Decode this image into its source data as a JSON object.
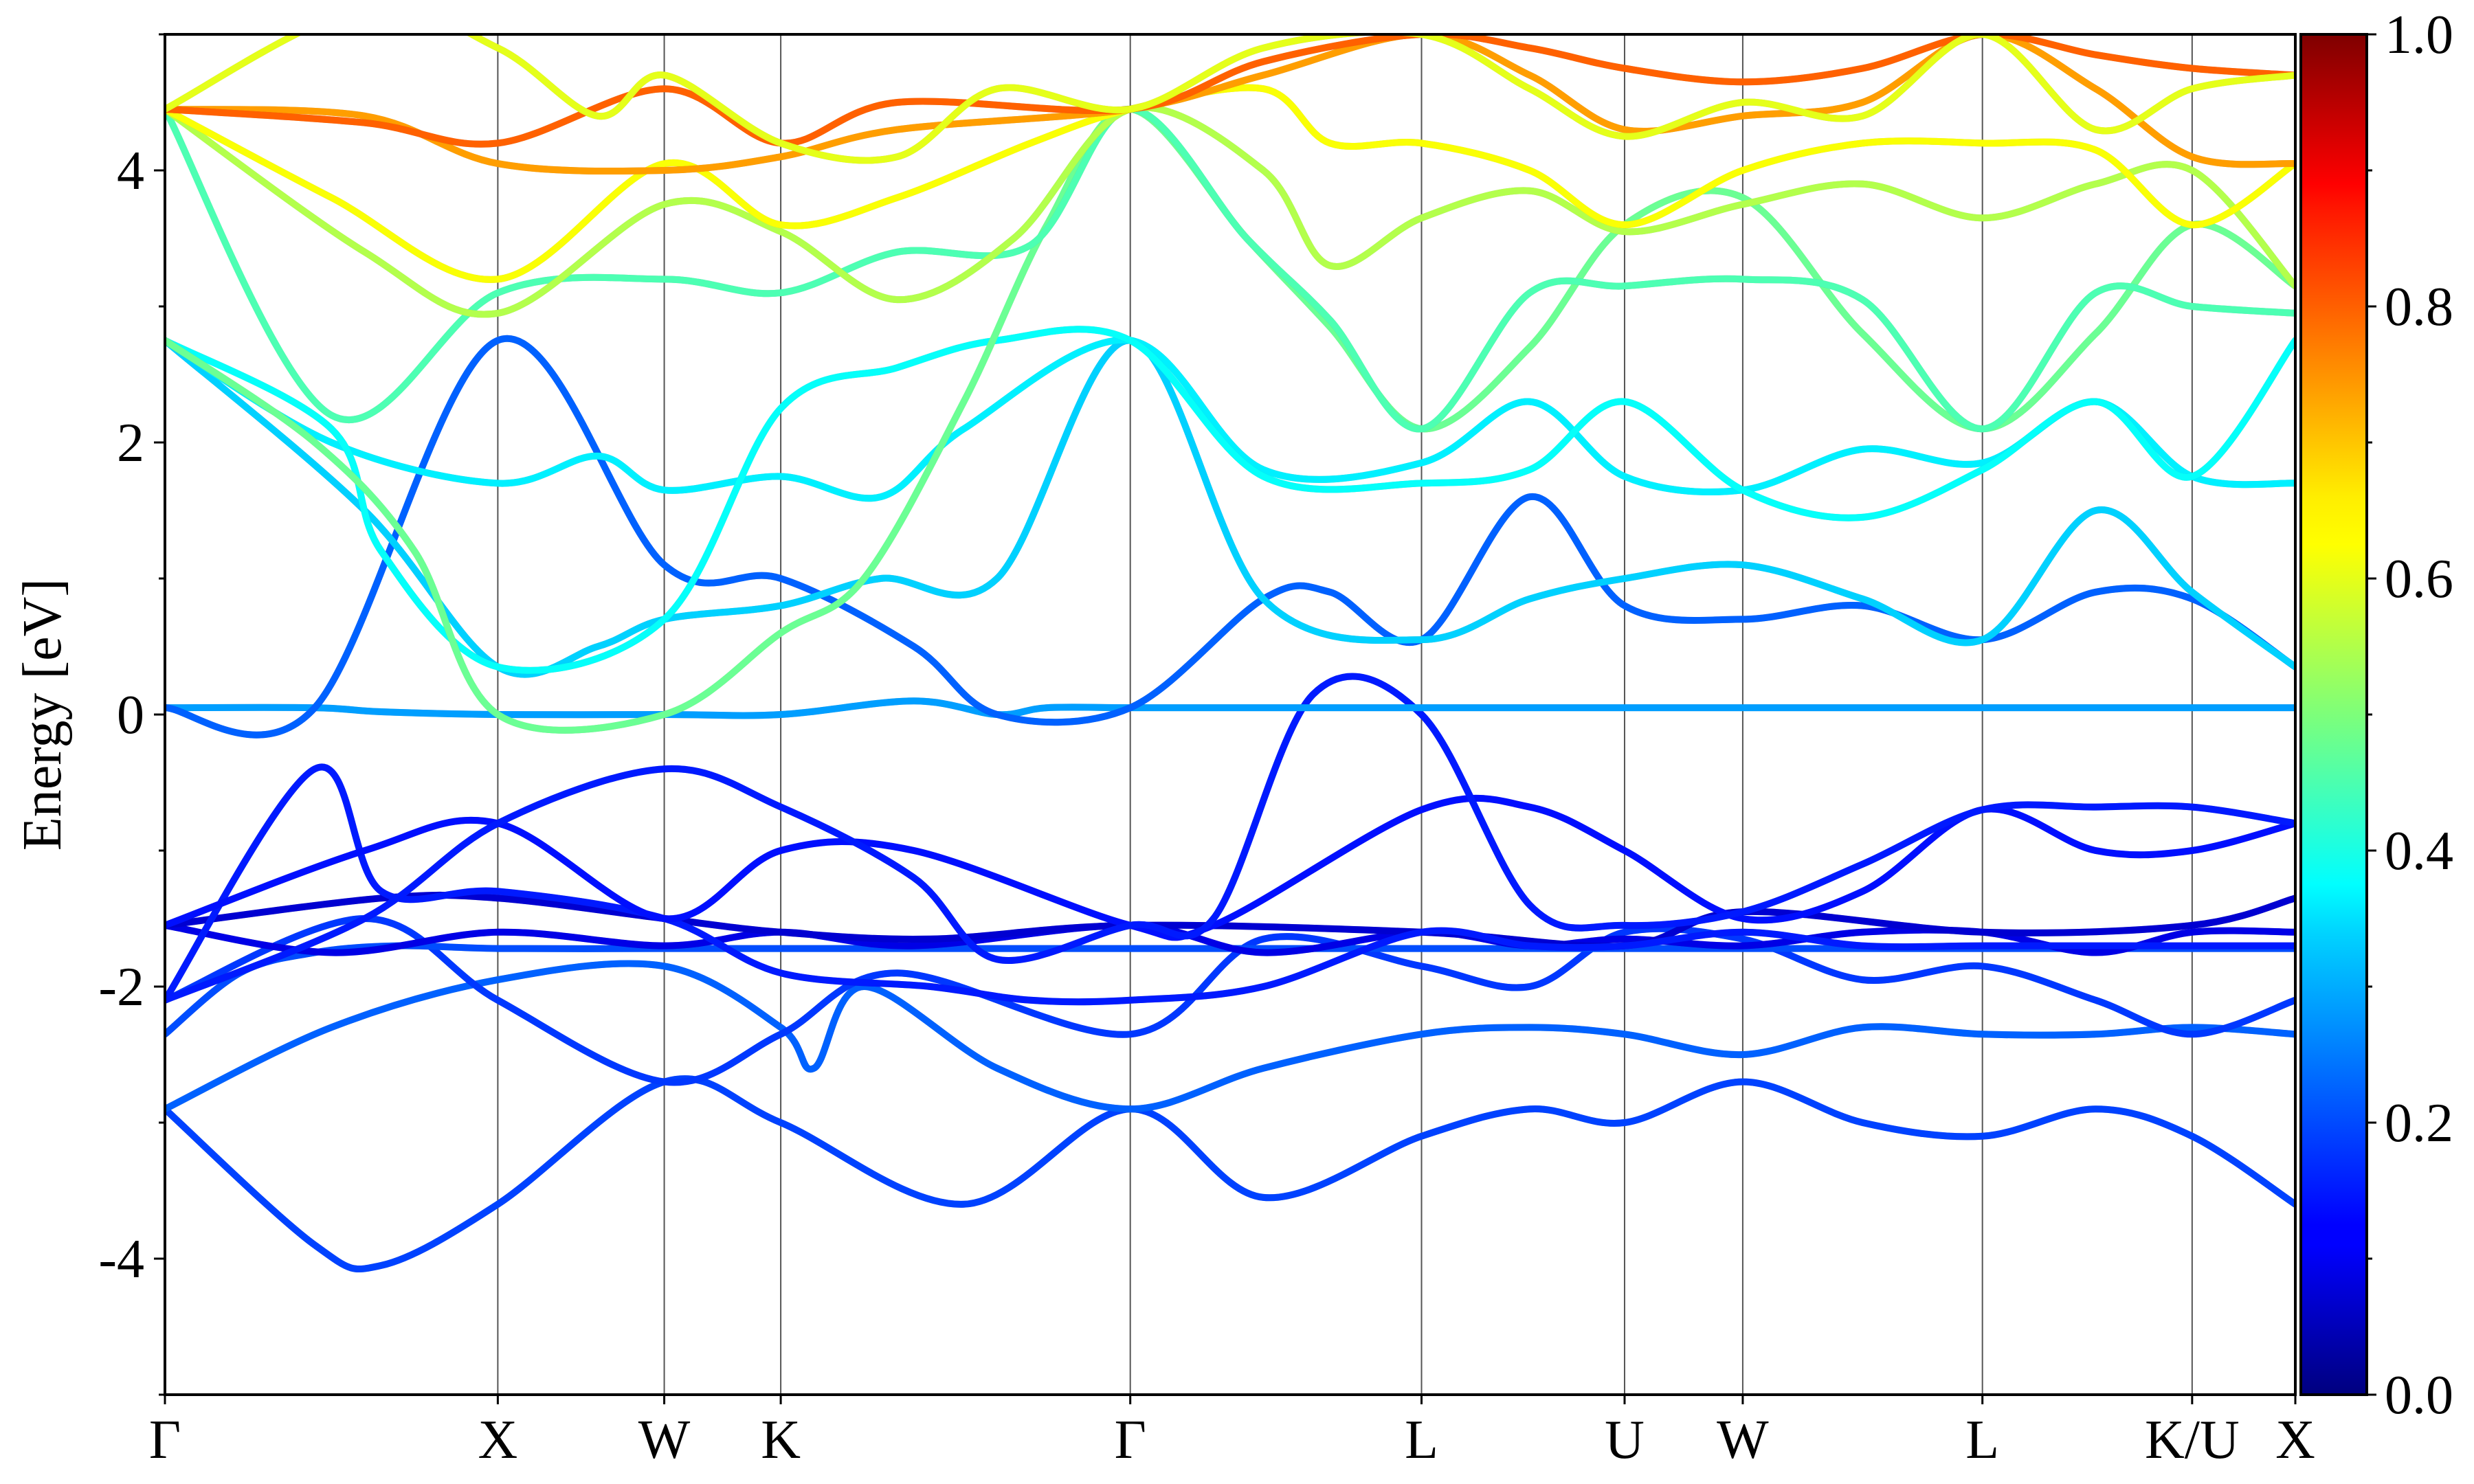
{
  "chart_data": {
    "type": "line",
    "title": "",
    "xlabel": "",
    "ylabel": "Energy [eV]",
    "ylim": [
      -5,
      5
    ],
    "yticks": [
      4,
      2,
      0,
      -2,
      -4
    ],
    "ytick_labels": [
      "4",
      "2",
      "0",
      "-2",
      "-4"
    ],
    "xlim": [
      0,
      12.8
    ],
    "kpoints": [
      {
        "label": "Γ",
        "x": 0
      },
      {
        "label": "X",
        "x": 2.0
      },
      {
        "label": "W",
        "x": 3.0
      },
      {
        "label": "K",
        "x": 3.7
      },
      {
        "label": "Γ",
        "x": 5.8
      },
      {
        "label": "L",
        "x": 7.55
      },
      {
        "label": "U",
        "x": 8.77
      },
      {
        "label": "W",
        "x": 9.48
      },
      {
        "label": "L",
        "x": 10.92
      },
      {
        "label": "K/U",
        "x": 12.18
      },
      {
        "label": "X",
        "x": 12.8
      }
    ],
    "colorbar": {
      "colormap": "jet",
      "range": [
        0.0,
        1.0
      ],
      "ticks": [
        1.0,
        0.8,
        0.6,
        0.4,
        0.2,
        0.0
      ],
      "tick_labels": [
        "1.0",
        "0.8",
        "0.6",
        "0.4",
        "0.2",
        "0.0"
      ]
    },
    "grid": "vertical lines at high-symmetry points",
    "series": [
      {
        "weight": 0.19,
        "x": [
          0,
          0.9,
          1.3,
          2.0,
          3.0,
          3.7,
          4.8,
          5.8,
          6.6,
          7.55,
          8.2,
          8.77,
          9.48,
          10.2,
          10.92,
          11.6,
          12.18,
          12.8
        ],
        "y": [
          -2.9,
          -3.9,
          -4.05,
          -3.6,
          -2.7,
          -3.0,
          -3.6,
          -2.9,
          -3.55,
          -3.1,
          -2.9,
          -3.0,
          -2.7,
          -3.0,
          -3.1,
          -2.9,
          -3.1,
          -3.6
        ]
      },
      {
        "weight": 0.22,
        "x": [
          0,
          1.0,
          2.0,
          3.0,
          3.7,
          3.9,
          4.2,
          5.0,
          5.8,
          6.6,
          7.55,
          8.2,
          8.77,
          9.48,
          10.2,
          10.92,
          11.6,
          12.18,
          12.8
        ],
        "y": [
          -2.9,
          -2.3,
          -1.95,
          -1.85,
          -2.3,
          -2.6,
          -2.0,
          -2.6,
          -2.9,
          -2.6,
          -2.35,
          -2.3,
          -2.35,
          -2.5,
          -2.3,
          -2.35,
          -2.35,
          -2.3,
          -2.35
        ]
      },
      {
        "weight": 0.18,
        "x": [
          0,
          1.2,
          2.0,
          3.0,
          3.7,
          4.4,
          5.8,
          6.6,
          7.55,
          8.2,
          8.77,
          9.48,
          10.2,
          10.92,
          11.6,
          12.18,
          12.8
        ],
        "y": [
          -2.1,
          -1.5,
          -2.1,
          -2.7,
          -2.35,
          -1.9,
          -2.35,
          -1.65,
          -1.85,
          -2.0,
          -1.6,
          -1.65,
          -1.95,
          -1.85,
          -2.1,
          -2.35,
          -2.1
        ]
      },
      {
        "weight": 0.2,
        "x": [
          0,
          0.45,
          0.9,
          1.4,
          2.0,
          3.0,
          3.7,
          5.8,
          6.6,
          7.55,
          8.2,
          8.77,
          9.48,
          10.92,
          12.8
        ],
        "y": [
          -2.35,
          -1.9,
          -1.75,
          -1.7,
          -1.72,
          -1.72,
          -1.72,
          -1.72,
          -1.72,
          -1.72,
          -1.72,
          -1.72,
          -1.72,
          -1.72,
          -1.72
        ]
      },
      {
        "weight": 0.1,
        "x": [
          0,
          1.0,
          2.0,
          3.0,
          3.7,
          4.5,
          5.8,
          6.6,
          7.55,
          8.2,
          8.77,
          9.48,
          10.2,
          10.92,
          11.6,
          12.18,
          12.8
        ],
        "y": [
          -1.55,
          -1.75,
          -1.6,
          -1.7,
          -1.6,
          -1.7,
          -1.55,
          -1.75,
          -1.6,
          -1.7,
          -1.65,
          -1.7,
          -1.6,
          -1.6,
          -1.75,
          -1.6,
          -1.6
        ]
      },
      {
        "weight": 0.08,
        "x": [
          0,
          1.3,
          2.0,
          3.0,
          3.7,
          4.6,
          5.8,
          7.55,
          8.77,
          9.48,
          10.92,
          12.18,
          12.8
        ],
        "y": [
          -1.55,
          -1.35,
          -1.35,
          -1.5,
          -1.6,
          -1.65,
          -1.55,
          -1.6,
          -1.7,
          -1.45,
          -1.6,
          -1.55,
          -1.35
        ]
      },
      {
        "weight": 0.15,
        "x": [
          0,
          0.9,
          1.3,
          2.0,
          3.0,
          3.7,
          4.6,
          5.2,
          5.8,
          6.6,
          7.55,
          8.2,
          8.77,
          9.48,
          10.2,
          10.92,
          11.6,
          12.18,
          12.8
        ],
        "y": [
          -2.1,
          -0.4,
          -1.3,
          -1.3,
          -1.5,
          -1.9,
          -2.0,
          -2.1,
          -2.1,
          -2.0,
          -1.6,
          -1.7,
          -1.7,
          -1.6,
          -1.7,
          -1.7,
          -1.7,
          -1.7,
          -1.7
        ]
      },
      {
        "weight": 0.14,
        "x": [
          0,
          1.2,
          2.0,
          3.0,
          3.7,
          4.5,
          5.8,
          6.3,
          7.55,
          8.2,
          8.77,
          9.48,
          10.2,
          10.92,
          11.6,
          12.18,
          12.8
        ],
        "y": [
          -1.55,
          -1.0,
          -0.8,
          -1.5,
          -1.0,
          -1.0,
          -1.55,
          -1.55,
          -0.7,
          -0.68,
          -1.0,
          -1.5,
          -1.3,
          -0.7,
          -1.0,
          -1.0,
          -0.8
        ]
      },
      {
        "weight": 0.15,
        "x": [
          0,
          1.2,
          2.0,
          3.0,
          3.7,
          4.5,
          5.0,
          5.8,
          6.3,
          6.9,
          7.55,
          8.2,
          8.77,
          9.48,
          10.2,
          10.92,
          11.6,
          12.18,
          12.8
        ],
        "y": [
          -2.1,
          -1.5,
          -0.8,
          -0.4,
          -0.68,
          -1.2,
          -1.8,
          -1.55,
          -1.5,
          0.15,
          0.0,
          -1.4,
          -1.55,
          -1.45,
          -1.1,
          -0.7,
          -0.68,
          -0.68,
          -0.8
        ]
      },
      {
        "weight": 0.28,
        "x": [
          0,
          0.9,
          1.3,
          2.0,
          3.0,
          3.7,
          4.5,
          5.0,
          5.3,
          5.8,
          6.6,
          7.55,
          8.77,
          9.48,
          10.2,
          10.92,
          11.6,
          12.18,
          12.8
        ],
        "y": [
          0.05,
          0.05,
          0.02,
          0.0,
          0.0,
          0.0,
          0.1,
          0.0,
          0.05,
          0.05,
          0.05,
          0.05,
          0.05,
          0.05,
          0.05,
          0.05,
          0.05,
          0.05,
          0.05
        ]
      },
      {
        "weight": 0.22,
        "x": [
          0,
          0.9,
          2.0,
          3.0,
          3.7,
          4.5,
          5.0,
          5.8,
          6.6,
          7.0,
          7.55,
          8.2,
          8.77,
          9.48,
          10.2,
          10.92,
          11.6,
          12.18,
          12.8
        ],
        "y": [
          0.05,
          0.05,
          2.75,
          1.1,
          1.0,
          0.5,
          0.0,
          0.05,
          0.85,
          0.9,
          0.55,
          1.6,
          0.8,
          0.7,
          0.8,
          0.55,
          0.9,
          0.85,
          0.35
        ]
      },
      {
        "weight": 0.33,
        "x": [
          0,
          1.2,
          2.0,
          2.6,
          3.0,
          3.7,
          4.3,
          5.0,
          5.8,
          6.6,
          7.55,
          8.2,
          8.77,
          9.48,
          10.2,
          10.92,
          11.6,
          12.18,
          12.8
        ],
        "y": [
          2.75,
          1.5,
          0.35,
          0.5,
          0.7,
          0.8,
          1.0,
          1.0,
          2.75,
          0.85,
          0.55,
          0.85,
          1.0,
          1.1,
          0.85,
          0.55,
          1.5,
          0.9,
          0.35
        ]
      },
      {
        "weight": 0.36,
        "x": [
          0,
          1.0,
          2.0,
          2.6,
          3.0,
          3.7,
          4.3,
          4.8,
          5.8,
          6.6,
          7.55,
          8.2,
          8.77,
          9.48,
          10.2,
          10.92,
          11.6,
          12.18,
          12.8
        ],
        "y": [
          2.75,
          2.0,
          1.7,
          1.9,
          1.65,
          1.75,
          1.6,
          2.1,
          2.75,
          1.8,
          1.85,
          2.3,
          1.75,
          1.65,
          1.95,
          1.85,
          2.3,
          1.75,
          1.7
        ]
      },
      {
        "weight": 0.38,
        "x": [
          0,
          1.0,
          1.3,
          2.0,
          3.0,
          3.7,
          4.4,
          5.0,
          5.8,
          6.6,
          7.55,
          8.2,
          8.77,
          9.48,
          10.2,
          10.92,
          11.6,
          12.18,
          12.8
        ],
        "y": [
          2.75,
          2.1,
          1.2,
          0.35,
          0.7,
          2.25,
          2.55,
          2.75,
          2.75,
          1.75,
          1.7,
          1.8,
          2.3,
          1.65,
          1.45,
          1.8,
          2.3,
          1.75,
          2.75
        ]
      },
      {
        "weight": 0.48,
        "x": [
          0,
          0.9,
          1.5,
          2.0,
          3.0,
          3.7,
          4.2,
          4.8,
          5.3,
          5.8,
          6.5,
          7.0,
          7.55,
          8.2,
          8.77,
          9.48,
          10.2,
          10.92,
          11.6,
          12.18,
          12.8
        ],
        "y": [
          2.75,
          2.0,
          1.2,
          0.0,
          0.0,
          0.6,
          1.0,
          2.3,
          3.6,
          4.45,
          3.5,
          2.85,
          2.1,
          2.7,
          3.6,
          3.8,
          2.8,
          2.1,
          2.8,
          3.6,
          3.15
        ]
      },
      {
        "weight": 0.45,
        "x": [
          0,
          1.0,
          2.0,
          3.0,
          3.7,
          4.4,
          5.2,
          5.8,
          6.5,
          7.0,
          7.55,
          8.2,
          8.77,
          9.48,
          10.2,
          10.92,
          11.6,
          12.18,
          12.8
        ],
        "y": [
          4.45,
          2.2,
          3.1,
          3.2,
          3.1,
          3.4,
          3.45,
          4.45,
          3.5,
          2.9,
          2.1,
          3.1,
          3.15,
          3.2,
          3.05,
          2.1,
          3.1,
          3.0,
          2.95
        ]
      },
      {
        "weight": 0.55,
        "x": [
          0,
          1.2,
          2.0,
          3.0,
          3.7,
          4.4,
          5.1,
          5.8,
          6.6,
          7.0,
          7.55,
          8.2,
          8.77,
          9.48,
          10.2,
          10.92,
          11.6,
          12.18,
          12.8
        ],
        "y": [
          4.45,
          3.4,
          2.95,
          3.75,
          3.55,
          3.05,
          3.5,
          4.45,
          4.0,
          3.3,
          3.65,
          3.85,
          3.55,
          3.75,
          3.9,
          3.65,
          3.9,
          4.0,
          3.15
        ]
      },
      {
        "weight": 0.62,
        "x": [
          0,
          1.0,
          2.0,
          3.0,
          3.7,
          4.4,
          5.2,
          5.8,
          6.6,
          7.0,
          7.55,
          8.2,
          8.77,
          9.48,
          10.2,
          10.92,
          11.6,
          12.18,
          12.8
        ],
        "y": [
          4.45,
          3.8,
          3.2,
          4.05,
          3.6,
          3.8,
          4.2,
          4.45,
          4.6,
          4.2,
          4.2,
          4.0,
          3.6,
          4.0,
          4.2,
          4.2,
          4.15,
          3.6,
          4.05
        ]
      },
      {
        "weight": 0.72,
        "x": [
          0,
          1.2,
          2.0,
          3.0,
          3.7,
          4.4,
          5.8,
          6.6,
          7.55,
          8.2,
          8.77,
          9.48,
          10.2,
          10.92,
          11.6,
          12.18,
          12.8
        ],
        "y": [
          4.45,
          4.4,
          4.05,
          4.0,
          4.1,
          4.3,
          4.45,
          4.7,
          5.0,
          4.7,
          4.3,
          4.4,
          4.5,
          5.0,
          4.6,
          4.1,
          4.05
        ]
      },
      {
        "weight": 0.78,
        "x": [
          0,
          1.2,
          2.0,
          3.0,
          3.7,
          4.4,
          5.8,
          6.6,
          7.55,
          8.2,
          8.77,
          9.48,
          10.2,
          10.92,
          11.6,
          12.18,
          12.8
        ],
        "y": [
          4.45,
          4.35,
          4.2,
          4.6,
          4.2,
          4.5,
          4.45,
          4.8,
          5.0,
          4.9,
          4.75,
          4.65,
          4.75,
          5.0,
          4.85,
          4.75,
          4.7
        ]
      },
      {
        "weight": 0.6,
        "x": [
          0,
          1.2,
          2.0,
          2.6,
          3.0,
          3.7,
          4.4,
          5.0,
          5.8,
          6.6,
          7.55,
          8.2,
          8.77,
          9.48,
          10.2,
          10.92,
          11.6,
          12.18,
          12.8
        ],
        "y": [
          4.45,
          5.2,
          4.9,
          4.4,
          4.7,
          4.2,
          4.1,
          4.6,
          4.45,
          4.9,
          5.0,
          4.6,
          4.25,
          4.5,
          4.4,
          5.0,
          4.3,
          4.6,
          4.7
        ]
      }
    ]
  }
}
